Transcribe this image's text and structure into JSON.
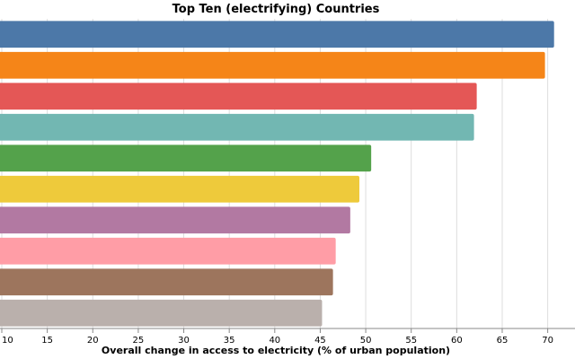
{
  "chart_data": {
    "type": "bar",
    "orientation": "horizontal",
    "title": "Top Ten (electrifying) Countries",
    "xlabel": "Overall change in access to electricity (% of urban population)",
    "ylabel": "",
    "xlim": [
      10,
      73
    ],
    "x_ticks": [
      "10",
      "15",
      "20",
      "25",
      "30",
      "35",
      "40",
      "45",
      "50",
      "55",
      "60",
      "65",
      "70"
    ],
    "grid": true,
    "values": [
      70.7,
      69.7,
      62.2,
      61.9,
      50.6,
      49.3,
      48.3,
      46.7,
      46.4,
      45.2
    ],
    "colors": [
      "#4c78a8",
      "#f58518",
      "#e45756",
      "#72b7b2",
      "#54a24b",
      "#eeca3b",
      "#b279a2",
      "#ff9da6",
      "#9d755d",
      "#bab0ac"
    ]
  }
}
